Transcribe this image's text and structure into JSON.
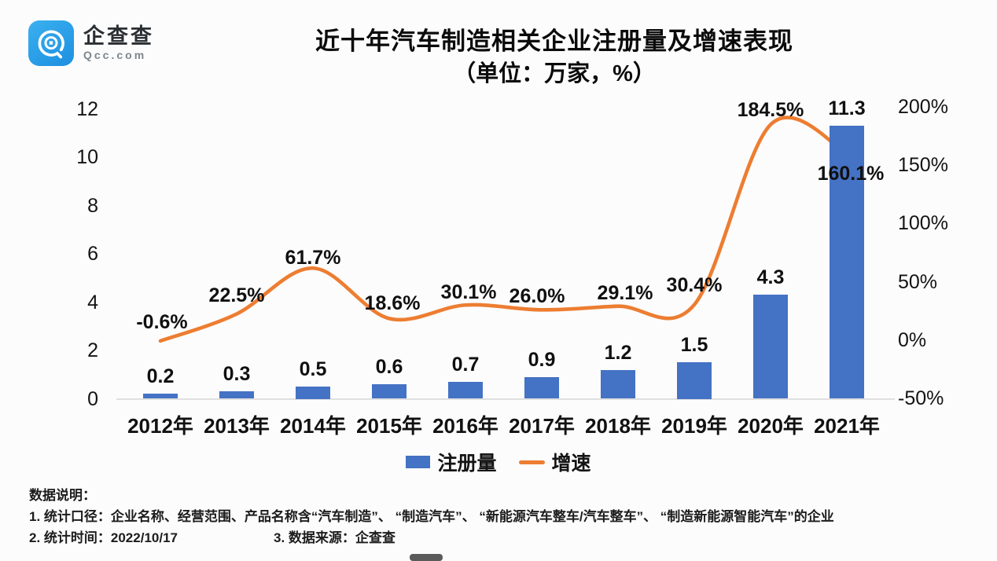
{
  "logo": {
    "icon": "qcc-logo-icon",
    "name": "企查查",
    "domain": "Qcc.com",
    "brand_color": "#2AA3E9"
  },
  "title": {
    "line1": "近十年汽车制造相关企业注册量及增速表现",
    "line2": "（单位：万家，%）"
  },
  "chart_data": {
    "type": "bar+line combo",
    "categories": [
      "2012年",
      "2013年",
      "2014年",
      "2015年",
      "2016年",
      "2017年",
      "2018年",
      "2019年",
      "2020年",
      "2021年"
    ],
    "series": [
      {
        "name": "注册量",
        "type": "bar",
        "color": "#4472C4",
        "axis": "left",
        "values": [
          0.2,
          0.3,
          0.5,
          0.6,
          0.7,
          0.9,
          1.2,
          1.5,
          4.3,
          11.3
        ],
        "labels": [
          "0.2",
          "0.3",
          "0.5",
          "0.6",
          "0.7",
          "0.9",
          "1.2",
          "1.5",
          "4.3",
          "11.3"
        ]
      },
      {
        "name": "增速",
        "type": "line",
        "color": "#ED7D31",
        "axis": "right",
        "values": [
          -0.6,
          22.5,
          61.7,
          18.6,
          30.1,
          26.0,
          29.1,
          30.4,
          184.5,
          160.1
        ],
        "labels": [
          "-0.6%",
          "22.5%",
          "61.7%",
          "18.6%",
          "30.1%",
          "26.0%",
          "29.1%",
          "30.4%",
          "184.5%",
          "160.1%"
        ]
      }
    ],
    "left_axis": {
      "ticks": [
        12,
        10,
        8,
        6,
        4,
        2,
        0
      ],
      "min": 0,
      "max": 12
    },
    "right_axis": {
      "ticks": [
        200,
        150,
        100,
        50,
        0,
        -50
      ],
      "tick_labels": [
        "200%",
        "150%",
        "100%",
        "50%",
        "0%",
        "-50%"
      ],
      "min": -50,
      "max": 200
    },
    "legend": [
      {
        "label": "注册量",
        "swatch": "bar",
        "color": "#4472C4"
      },
      {
        "label": "增速",
        "swatch": "line",
        "color": "#ED7D31"
      }
    ],
    "grid": false,
    "legend_position": "bottom"
  },
  "footer": {
    "heading": "数据说明：",
    "note1": "1. 统计口径：企业名称、经营范围、产品名称含“汽车制造”、 “制造汽车”、 “新能源汽车整车/汽车整车”、 “制造新能源智能汽车”的企业",
    "note2": "2. 统计时间：2022/10/17",
    "note3": "3. 数据来源：企查查"
  }
}
